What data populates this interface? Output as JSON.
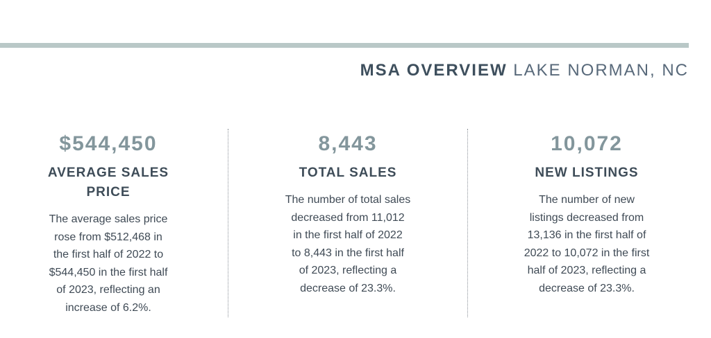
{
  "header": {
    "title_bold": "MSA OVERVIEW",
    "title_light": "LAKE NORMAN, NC"
  },
  "stats": [
    {
      "value": "$544,450",
      "label_lines": [
        "AVERAGE SALES",
        "PRICE"
      ],
      "desc_lines": [
        "The average sales price",
        "rose from $512,468 in",
        "the first half of 2022 to",
        "$544,450 in the first half",
        "of 2023, reflecting an",
        "increase of 6.2%."
      ]
    },
    {
      "value": "8,443",
      "label_lines": [
        "TOTAL SALES"
      ],
      "desc_lines": [
        "The number of total sales",
        "decreased from 11,012",
        "in the first half of 2022",
        "to 8,443 in the first half",
        "of 2023, reflecting a",
        "decrease of 23.3%."
      ]
    },
    {
      "value": "10,072",
      "label_lines": [
        "NEW LISTINGS"
      ],
      "desc_lines": [
        "The number of new",
        "listings decreased from",
        "13,136 in the first half of",
        "2022 to 10,072 in the first",
        "half of 2023, reflecting a",
        "decrease of 23.3%."
      ]
    }
  ],
  "colors": {
    "accent_rule": "#b9c8c7",
    "stat_value": "#83969c",
    "heading": "#3e4c58"
  }
}
